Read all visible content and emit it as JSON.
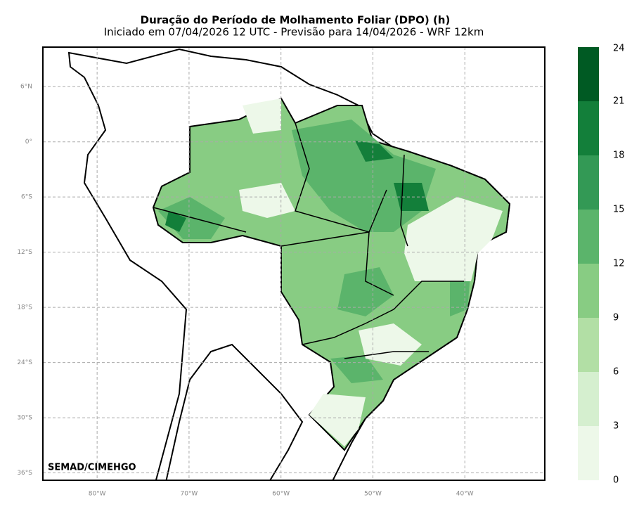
{
  "title": "Duração do Período de Molhamento Foliar (DPO) (h)",
  "subtitle": "Iniciado em 07/04/2026 12 UTC - Previsão para 14/04/2026 - WRF 12km",
  "credit": "SEMAD/CIMEHGO",
  "map": {
    "xlim": [
      -85.9,
      -31.3
    ],
    "ylim": [
      -36.8,
      10.3
    ],
    "xticks": [
      {
        "value": -80,
        "label": "80°W"
      },
      {
        "value": -70,
        "label": "70°W"
      },
      {
        "value": -60,
        "label": "60°W"
      },
      {
        "value": -50,
        "label": "50°W"
      },
      {
        "value": -40,
        "label": "40°W"
      }
    ],
    "yticks": [
      {
        "value": 6,
        "label": "6°N"
      },
      {
        "value": 0,
        "label": "0°"
      },
      {
        "value": -6,
        "label": "6°S"
      },
      {
        "value": -12,
        "label": "12°S"
      },
      {
        "value": -18,
        "label": "18°S"
      },
      {
        "value": -24,
        "label": "24°S"
      },
      {
        "value": -30,
        "label": "30°S"
      },
      {
        "value": -36,
        "label": "36°S"
      }
    ],
    "grid": true
  },
  "colorbar": {
    "levels": [
      0,
      3,
      6,
      9,
      12,
      15,
      18,
      21,
      24
    ],
    "colors": [
      "#edf8e9",
      "#d5efcf",
      "#b2dfa5",
      "#88cc83",
      "#5bb46b",
      "#339955",
      "#137f3a",
      "#005a23"
    ]
  }
}
